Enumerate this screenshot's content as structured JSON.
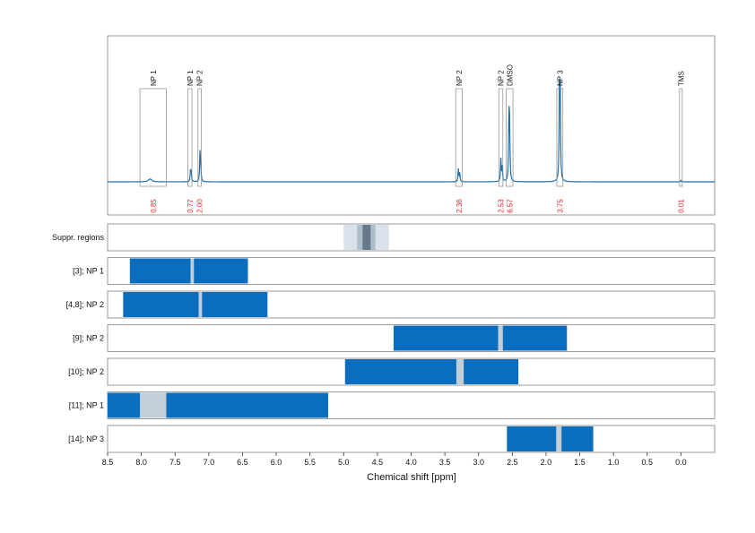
{
  "chart_data": {
    "type": "nmr-spectrum",
    "xlabel": "Chemical shift [ppm]",
    "xlim": [
      8.5,
      -0.5
    ],
    "xticks": [
      "8.5",
      "8.0",
      "7.5",
      "7.0",
      "6.5",
      "6.0",
      "5.5",
      "5.0",
      "4.5",
      "4.0",
      "3.5",
      "3.0",
      "2.5",
      "2.0",
      "1.5",
      "1.0",
      "0.5",
      "0.0"
    ],
    "grid_major_ppm": [
      8.0,
      7.0,
      6.0,
      5.0,
      4.0,
      3.0,
      2.0,
      1.0,
      0.0
    ],
    "grid_minor_ppm": [
      8.5,
      7.5,
      6.5,
      5.5,
      4.5,
      3.5,
      2.5,
      1.5,
      0.5
    ],
    "line_color": "#1f6ea8",
    "bar_color": "#0a6dbd",
    "gap_color": "#c3cfd8",
    "grid_color": "#b9b9b9",
    "integral_color": "#e8262a",
    "peaks": [
      {
        "ppm": 7.87,
        "height": 0.02
      },
      {
        "ppm": 7.27,
        "height": 0.08
      },
      {
        "ppm": 7.26,
        "height": 0.06
      },
      {
        "ppm": 7.13,
        "height": 0.2
      },
      {
        "ppm": 7.12,
        "height": 0.1
      },
      {
        "ppm": 3.3,
        "height": 0.09
      },
      {
        "ppm": 3.28,
        "height": 0.06
      },
      {
        "ppm": 2.67,
        "height": 0.16
      },
      {
        "ppm": 2.65,
        "height": 0.1
      },
      {
        "ppm": 2.55,
        "height": 0.47
      },
      {
        "ppm": 2.54,
        "height": 0.35
      },
      {
        "ppm": 1.8,
        "height": 0.62
      },
      {
        "ppm": 1.79,
        "height": 0.58
      },
      {
        "ppm": 0.0,
        "height": 0.01
      }
    ],
    "annotations": [
      {
        "label": "NP 1",
        "start": 8.02,
        "end": 7.63,
        "box_top": 0.65,
        "integral": "0.85"
      },
      {
        "label": "NP 1",
        "start": 7.31,
        "end": 7.25,
        "box_top": 0.65,
        "integral": "0.77"
      },
      {
        "label": "NP 2",
        "start": 7.16,
        "end": 7.11,
        "box_top": 0.65,
        "integral": "2.00"
      },
      {
        "label": "NP 2",
        "start": 3.34,
        "end": 3.24,
        "box_top": 0.65,
        "integral": "2.36"
      },
      {
        "label": "NP 2",
        "start": 2.7,
        "end": 2.64,
        "box_top": 0.65,
        "integral": "2.53"
      },
      {
        "label": "DMSO",
        "start": 2.59,
        "end": 2.49,
        "box_top": 0.65,
        "integral": "6.57"
      },
      {
        "label": "NP 3",
        "start": 1.84,
        "end": 1.75,
        "box_top": 0.65,
        "integral": "3.75"
      },
      {
        "label": "TMS",
        "start": 0.02,
        "end": -0.02,
        "box_top": 0.65,
        "integral": "0.01"
      }
    ],
    "rows": [
      {
        "label": "Suppr. regions",
        "type": "suppression",
        "outer": [
          5.0,
          4.33
        ],
        "mid": [
          4.8,
          4.53
        ],
        "inner": [
          4.72,
          4.6
        ]
      },
      {
        "label": "[3]; NP 1",
        "bar": [
          8.17,
          6.42
        ],
        "gaps": [
          [
            7.27,
            7.22
          ]
        ]
      },
      {
        "label": "[4,8]; NP 2",
        "bar": [
          8.27,
          6.13
        ],
        "gaps": [
          [
            7.15,
            7.1
          ]
        ]
      },
      {
        "label": "[9]; NP 2",
        "bar": [
          4.26,
          1.69
        ],
        "gaps": [
          [
            2.71,
            2.64
          ]
        ]
      },
      {
        "label": "[10]; NP 2",
        "bar": [
          4.98,
          2.41
        ],
        "gaps": [
          [
            3.33,
            3.22
          ]
        ]
      },
      {
        "label": "[11]; NP 1",
        "bar": [
          8.5,
          5.23
        ],
        "gaps": [
          [
            8.02,
            7.63
          ]
        ]
      },
      {
        "label": "[14]; NP 3",
        "bar": [
          2.58,
          1.3
        ],
        "gaps": [
          [
            1.85,
            1.77
          ]
        ]
      }
    ]
  }
}
